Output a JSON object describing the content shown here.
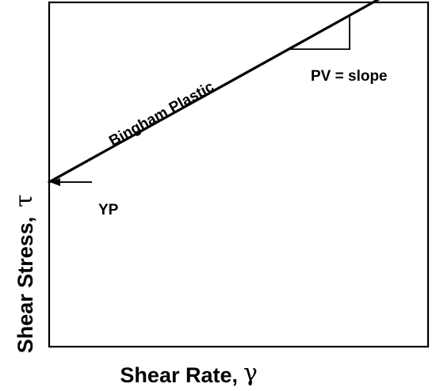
{
  "chart_data": {
    "type": "line",
    "title": "",
    "xlabel": "Shear Rate,",
    "xlabel_symbol": "γ",
    "ylabel": "Shear Stress,",
    "ylabel_symbol": "τ",
    "x_ticks": [],
    "y_ticks": [],
    "grid": false,
    "xlim": [
      0,
      10
    ],
    "ylim": [
      0,
      10
    ],
    "series": [
      {
        "name": "Bingham Plastic",
        "x": [
          0,
          9.94
        ],
        "y": [
          4.78,
          10.85
        ]
      }
    ],
    "slope_triangle": {
      "x": [
        6.33,
        7.93
      ],
      "y": [
        8.64,
        9.62
      ]
    },
    "annotations": {
      "line_label": "Bingham Plastic",
      "slope_label": "PV = slope",
      "intercept_label": "YP"
    }
  }
}
